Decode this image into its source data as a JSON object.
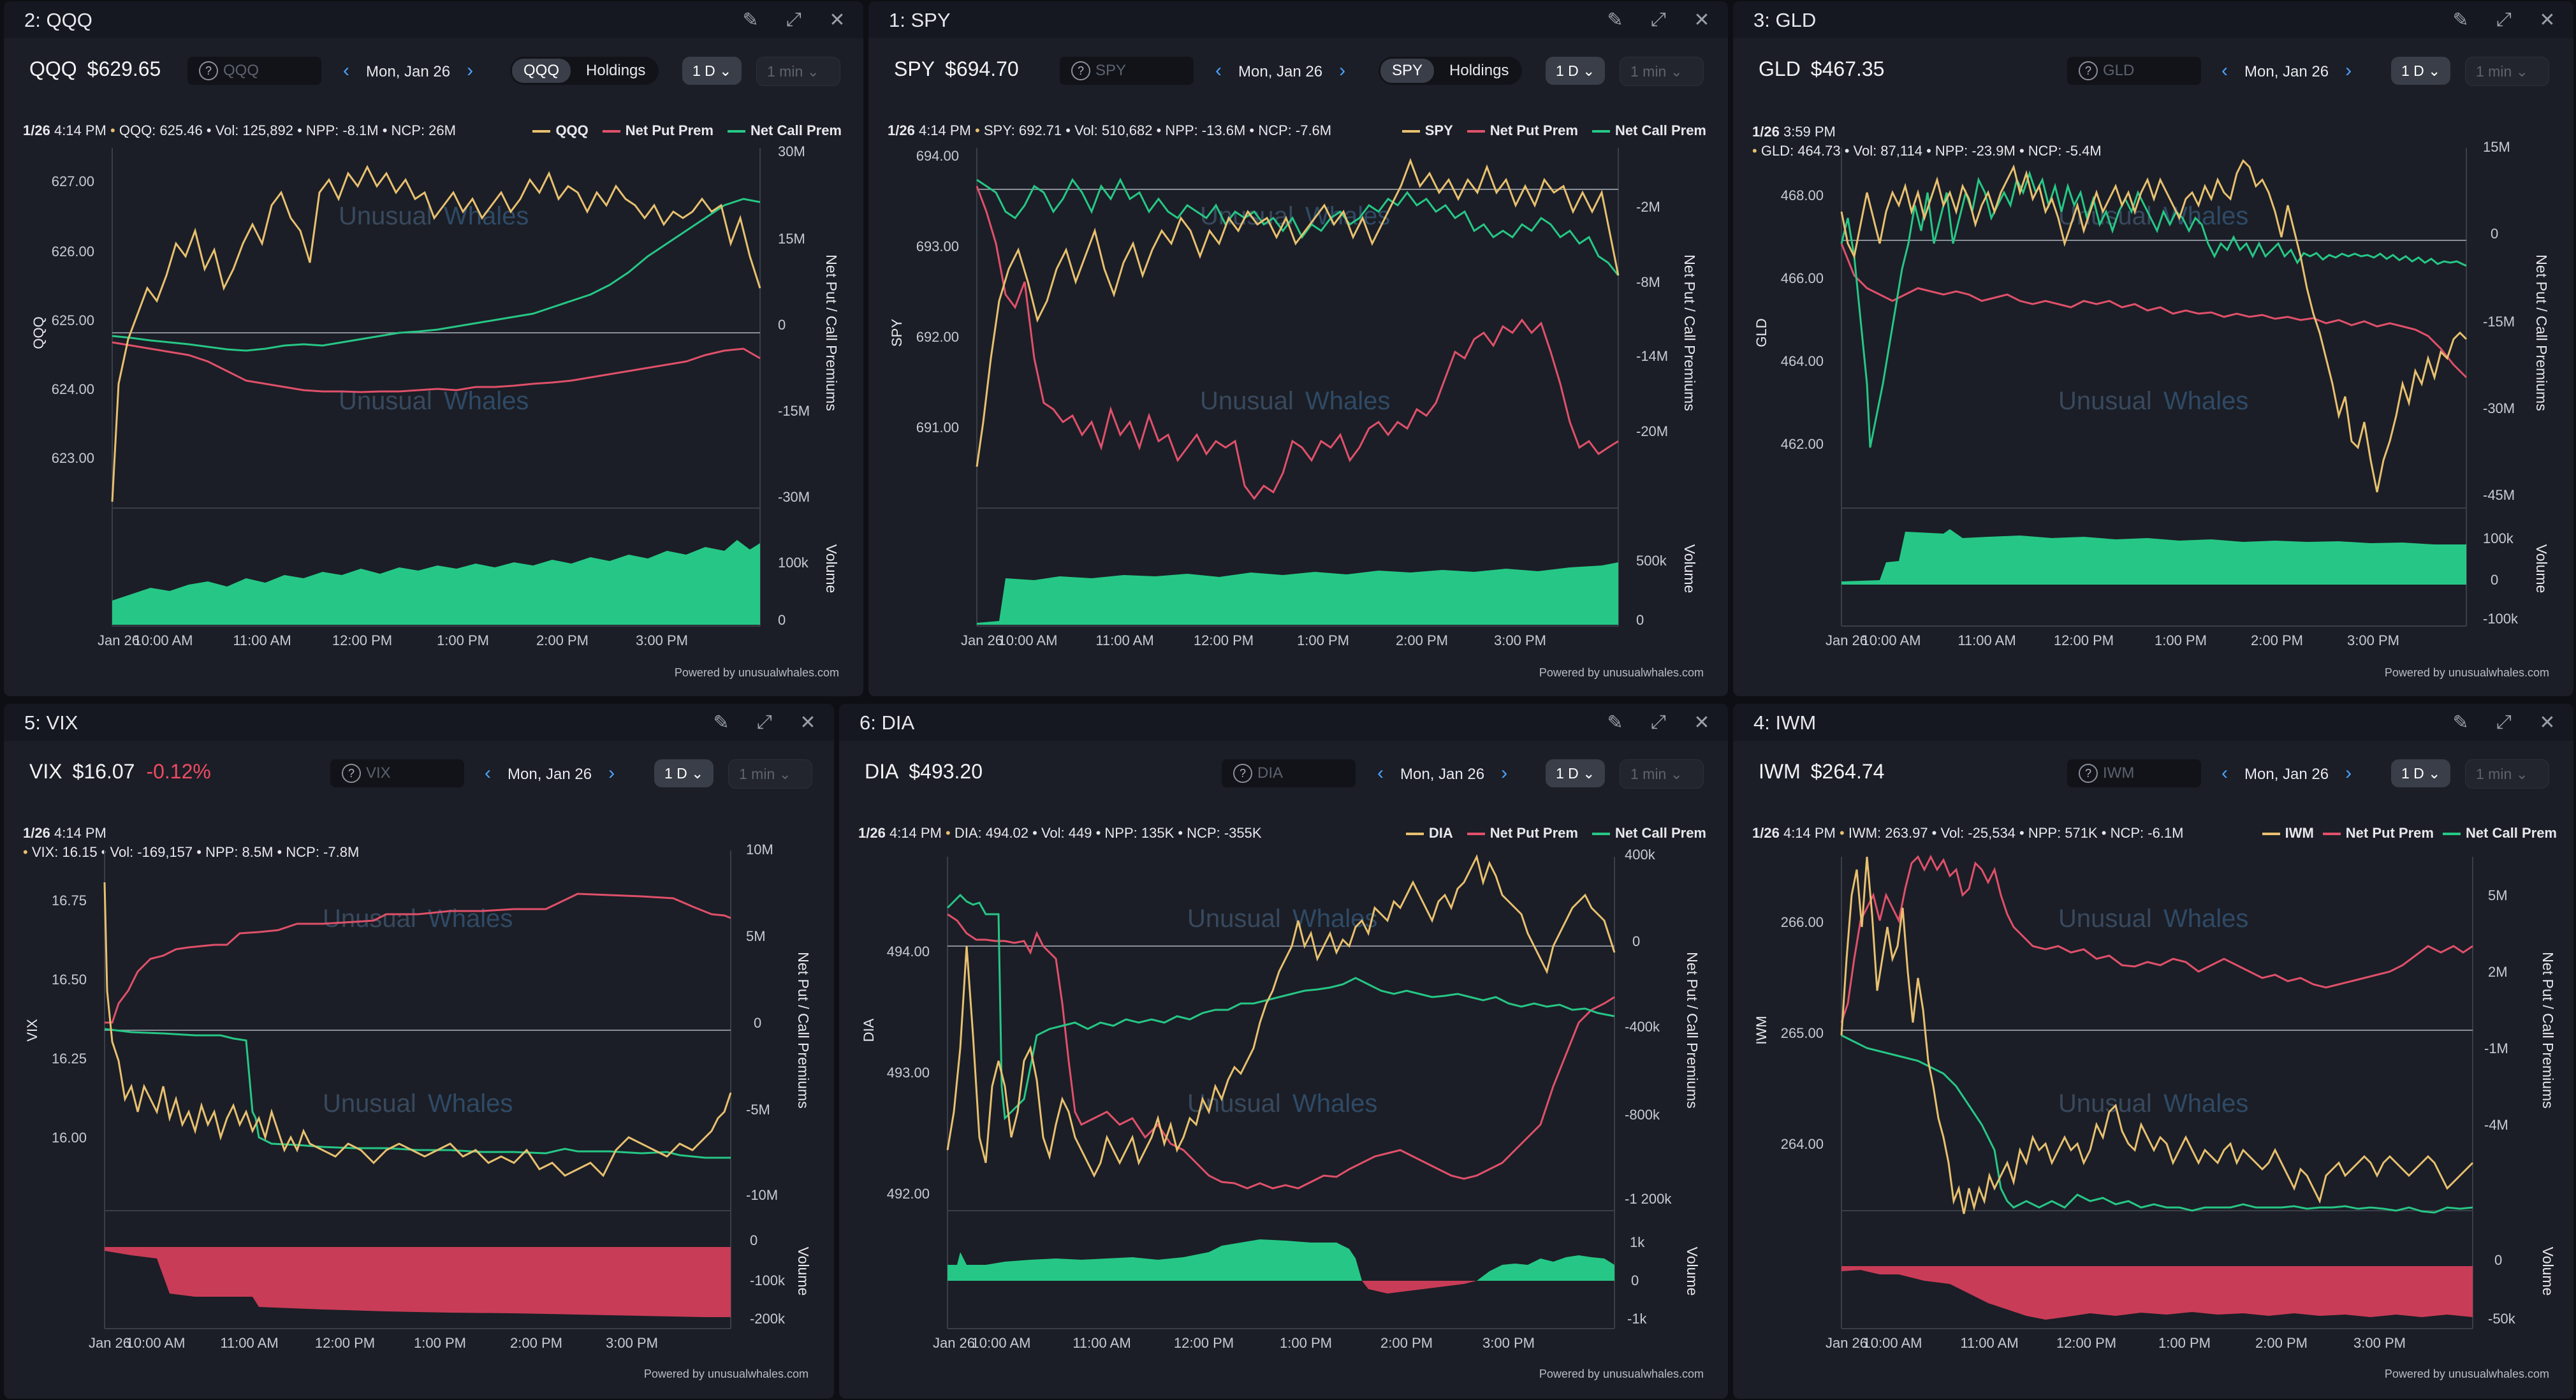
{
  "colors": {
    "price": "#e8c06f",
    "put": "#e0506a",
    "call": "#26c786",
    "vol_pos": "#26c786",
    "vol_neg": "#c93c57",
    "negative": "#f04b63"
  },
  "common": {
    "legend_put": "Net Put Prem",
    "legend_call": "Net Call Prem",
    "legend_call_short": "Net Call Prem",
    "right_axis_label": "Net Put / Call Premiums",
    "volume_label": "Volume",
    "watermark_a": "Unusual",
    "watermark_b": "Whales",
    "powered": "Powered by unusualwhales.com",
    "date": "Mon, Jan 26",
    "range": "1 D",
    "interval": "1 min",
    "holdings": "Holdings",
    "x_ticks": [
      "Jan 26",
      "10:00 AM",
      "11:00 AM",
      "12:00 PM",
      "1:00 PM",
      "2:00 PM",
      "3:00 PM"
    ]
  },
  "panels": [
    {
      "id": "qqq",
      "title": "2: QQQ",
      "symbol": "QQQ",
      "price": "$629.65",
      "change": "",
      "search_placeholder": "QQQ",
      "toggle": "QQQ",
      "info_date": "1/26",
      "info_time": "4:14 PM",
      "info_vals": "QQQ: 625.46 • Vol: 125,892 • NPP: -8.1M • NCP: 26M",
      "legend_price": "QQQ",
      "y_label": "QQQ",
      "y_ticks": [
        "627.00",
        "626.00",
        "625.00",
        "624.00",
        "623.00"
      ],
      "prem_ticks": [
        "30M",
        "15M",
        "0",
        "-15M",
        "-30M"
      ],
      "vol_ticks": [
        "100k",
        "0"
      ]
    },
    {
      "id": "spy",
      "title": "1: SPY",
      "symbol": "SPY",
      "price": "$694.70",
      "change": "",
      "search_placeholder": "SPY",
      "toggle": "SPY",
      "info_date": "1/26",
      "info_time": "4:14 PM",
      "info_vals": "SPY: 692.71 • Vol: 510,682 • NPP: -13.6M • NCP: -7.6M",
      "legend_price": "SPY",
      "y_label": "SPY",
      "y_ticks": [
        "694.00",
        "693.00",
        "692.00",
        "691.00"
      ],
      "prem_ticks": [
        "-2M",
        "-8M",
        "-14M",
        "-20M"
      ],
      "vol_ticks": [
        "500k",
        "0"
      ]
    },
    {
      "id": "gld",
      "title": "3: GLD",
      "symbol": "GLD",
      "price": "$467.35",
      "change": "",
      "search_placeholder": "GLD",
      "toggle": "",
      "info_date": "1/26",
      "info_time": "3:59 PM",
      "info_vals": "GLD: 464.73 • Vol: 87,114 • NPP: -23.9M • NCP: -5.4M",
      "legend_price": "",
      "y_label": "GLD",
      "y_ticks": [
        "468.00",
        "466.00",
        "464.00",
        "462.00"
      ],
      "prem_ticks": [
        "15M",
        "0",
        "-15M",
        "-30M",
        "-45M"
      ],
      "vol_ticks": [
        "100k",
        "0",
        "-100k"
      ]
    },
    {
      "id": "vix",
      "title": "5: VIX",
      "symbol": "VIX",
      "price": "$16.07",
      "change": "-0.12%",
      "search_placeholder": "VIX",
      "toggle": "",
      "info_date": "1/26",
      "info_time": "4:14 PM",
      "info_vals": "VIX: 16.15 • Vol: -169,157 • NPP: 8.5M • NCP: -7.8M",
      "legend_price": "",
      "y_label": "VIX",
      "y_ticks": [
        "16.75",
        "16.50",
        "16.25",
        "16.00"
      ],
      "prem_ticks": [
        "10M",
        "5M",
        "0",
        "-5M",
        "-10M"
      ],
      "vol_ticks": [
        "0",
        "-100k",
        "-200k"
      ]
    },
    {
      "id": "dia",
      "title": "6: DIA",
      "symbol": "DIA",
      "price": "$493.20",
      "change": "",
      "search_placeholder": "DIA",
      "toggle": "",
      "info_date": "1/26",
      "info_time": "4:14 PM",
      "info_vals": "DIA: 494.02 • Vol: 449 • NPP: 135K • NCP: -355K",
      "legend_price": "DIA",
      "y_label": "DIA",
      "y_ticks": [
        "494.00",
        "493.00",
        "492.00"
      ],
      "prem_ticks": [
        "400k",
        "0",
        "-400k",
        "-800k",
        "-1 200k"
      ],
      "vol_ticks": [
        "1k",
        "0",
        "-1k"
      ]
    },
    {
      "id": "iwm",
      "title": "4: IWM",
      "symbol": "IWM",
      "price": "$264.74",
      "change": "",
      "search_placeholder": "IWM",
      "toggle": "",
      "info_date": "1/26",
      "info_time": "4:14 PM",
      "info_vals": "IWM: 263.97 • Vol: -25,534 • NPP: 571K • NCP: -6.1M",
      "legend_price": "IWM",
      "y_label": "IWM",
      "y_ticks": [
        "266.00",
        "265.00",
        "264.00"
      ],
      "prem_ticks": [
        "5M",
        "2M",
        "-1M",
        "-4M"
      ],
      "vol_ticks": [
        "0",
        "-50k"
      ]
    }
  ]
}
